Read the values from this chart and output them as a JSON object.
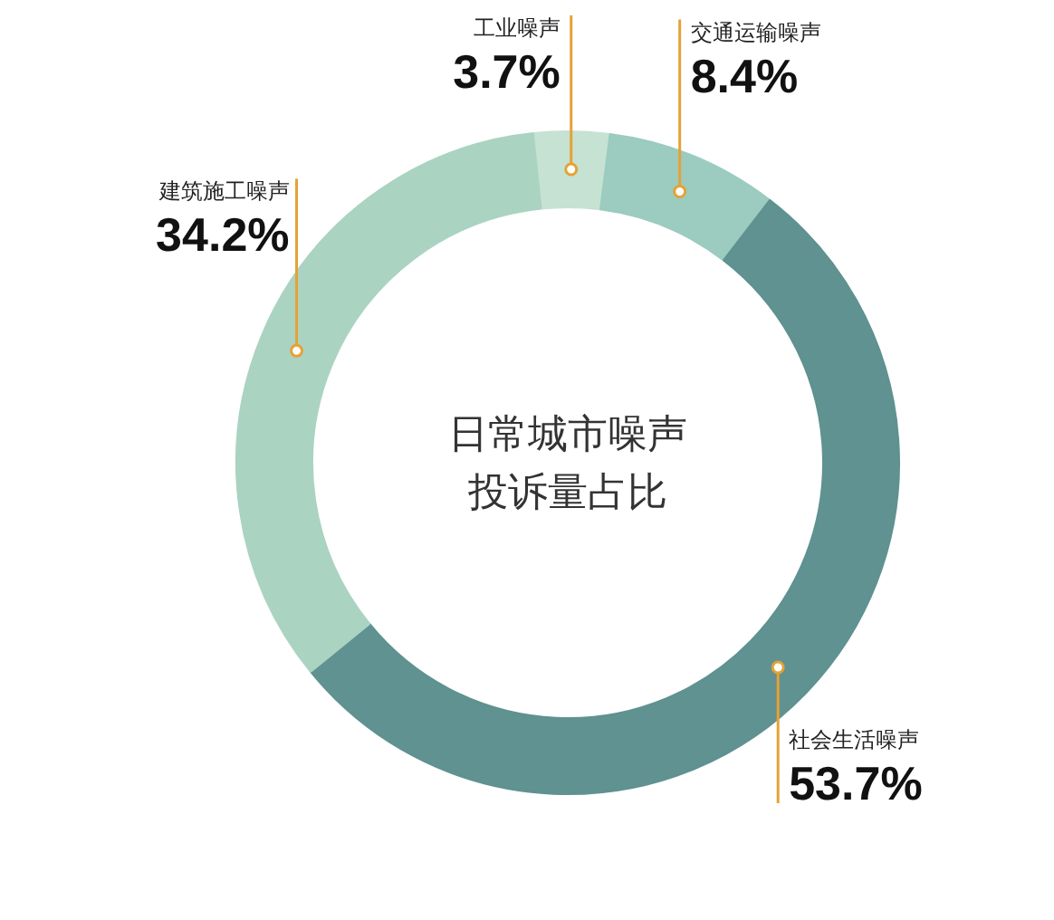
{
  "chart_data": {
    "type": "donut",
    "title": "日常城市噪声投诉量占比",
    "categories": [
      "工业噪声",
      "交通运输噪声",
      "社会生活噪声",
      "建筑施工噪声"
    ],
    "values": [
      3.7,
      8.4,
      53.7,
      34.2
    ],
    "value_labels": [
      "3.7%",
      "8.4%",
      "53.7%",
      "34.2%"
    ],
    "colors": [
      "#c6e2d3",
      "#9ccbbf",
      "#5f9290",
      "#abd3c2"
    ]
  }
}
